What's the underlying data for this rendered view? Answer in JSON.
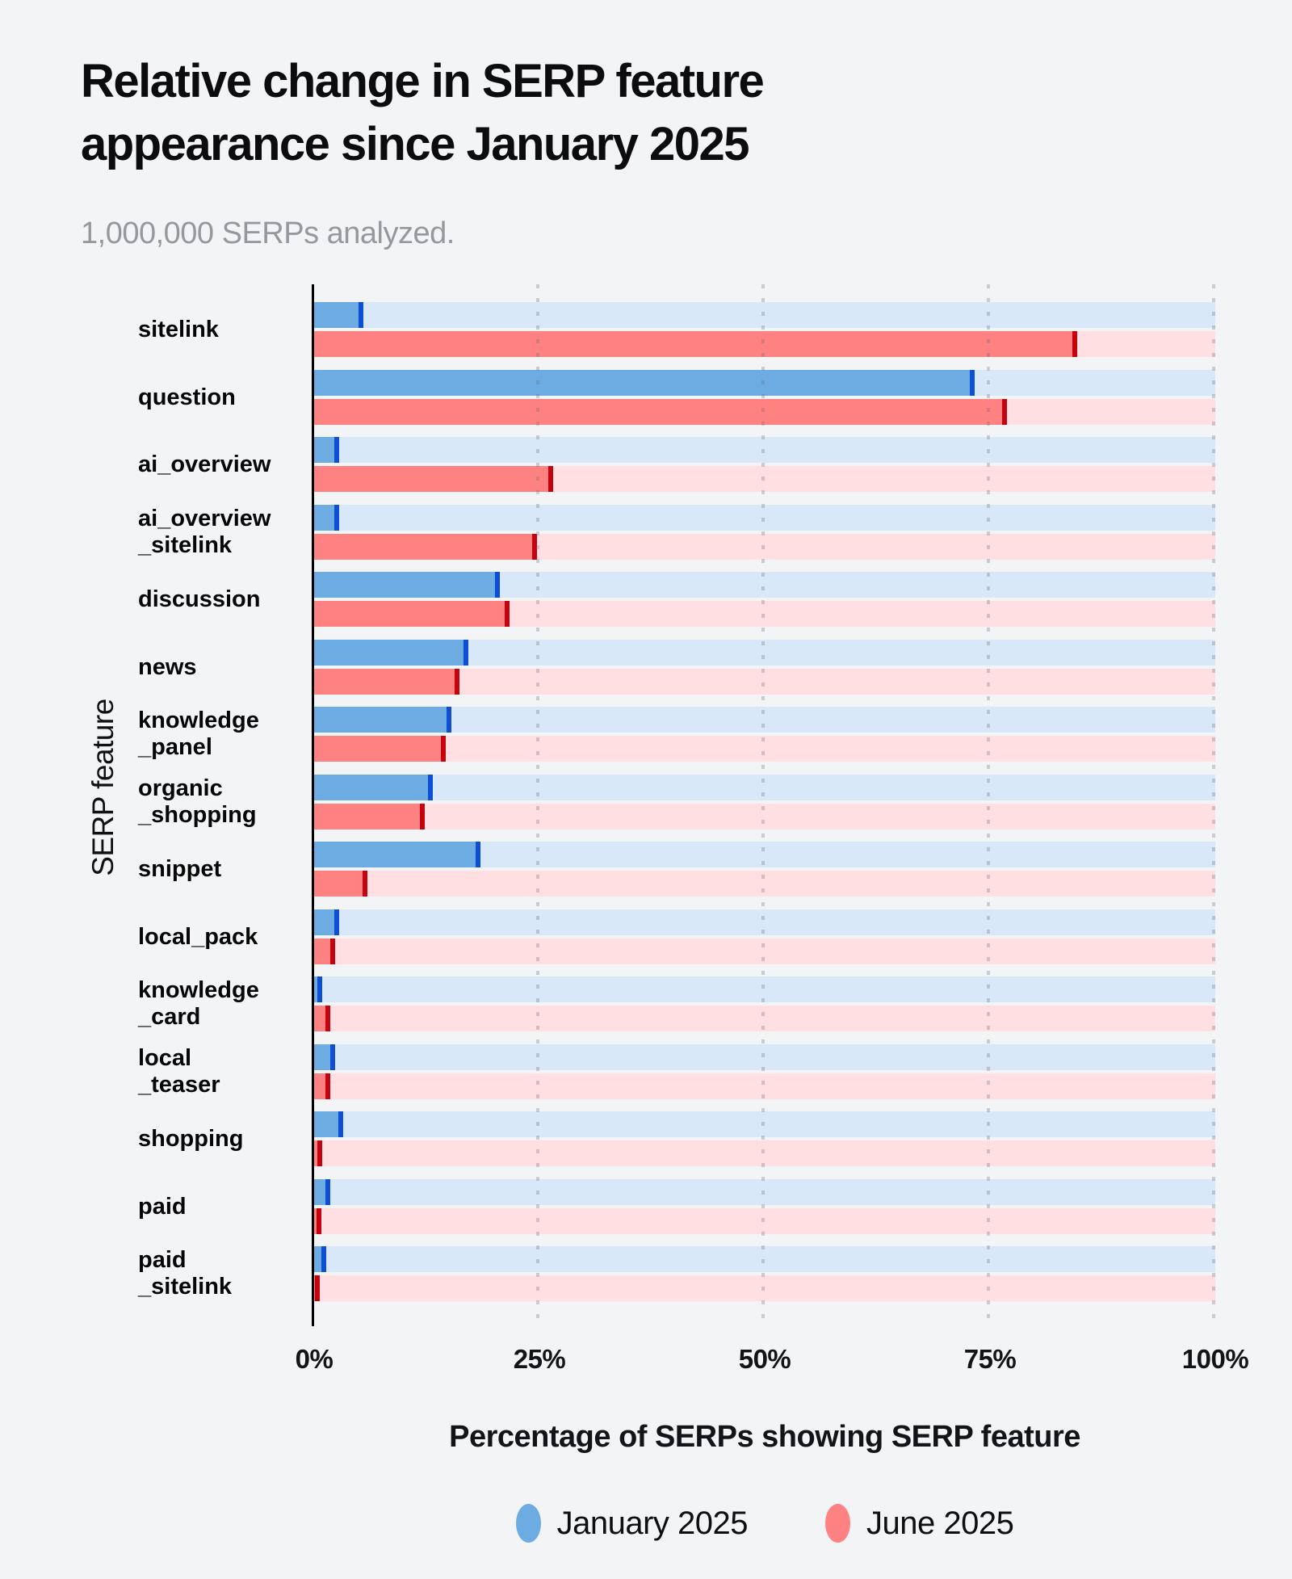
{
  "title": "Relative change in SERP feature appearance since January 2025",
  "subtitle": "1,000,000 SERPs analyzed.",
  "colors": {
    "background": "#f2f4f6",
    "january_fill": "#6dace3",
    "january_cap": "#0c4fd4",
    "january_track": "#d9e8f8",
    "june_fill": "#ff8282",
    "june_cap": "#c5020e",
    "june_track": "#ffdfe2",
    "axis": "#000000"
  },
  "x_axis": {
    "ticks": [
      "0%",
      "25%",
      "50%",
      "75%",
      "100%"
    ],
    "title": "Percentage of SERPs showing SERP feature"
  },
  "y_axis": {
    "title": "SERP feature"
  },
  "legend": {
    "items": [
      {
        "label": "January 2025",
        "color": "#6dace3"
      },
      {
        "label": "June 2025",
        "color": "#ff8282"
      }
    ]
  },
  "chart_data": {
    "type": "bar",
    "orientation": "horizontal",
    "title": "Relative change in SERP feature appearance since January 2025",
    "subtitle": "1,000,000 SERPs analyzed.",
    "xlabel": "Percentage of SERPs showing SERP feature",
    "ylabel": "SERP feature",
    "xlim": [
      0,
      100
    ],
    "x_tick_labels": [
      "0%",
      "25%",
      "50%",
      "75%",
      "100%"
    ],
    "grid": "dotted vertical gridlines at 25, 50, 75, 100",
    "legend_position": "bottom",
    "categories": [
      "sitelink",
      "question",
      "ai_overview",
      "ai_overview_sitelink",
      "discussion",
      "news",
      "knowledge_panel",
      "organic_shopping",
      "snippet",
      "local_pack",
      "knowledge_card",
      "local_teaser",
      "shopping",
      "paid",
      "paid_sitelink"
    ],
    "category_display_lines": [
      [
        "sitelink"
      ],
      [
        "question"
      ],
      [
        "ai_overview"
      ],
      [
        "ai_overview",
        "_sitelink"
      ],
      [
        "discussion"
      ],
      [
        "news"
      ],
      [
        "knowledge",
        "_panel"
      ],
      [
        "organic",
        "_shopping"
      ],
      [
        "snippet"
      ],
      [
        "local_pack"
      ],
      [
        "knowledge",
        "_card"
      ],
      [
        "local",
        "_teaser"
      ],
      [
        "shopping"
      ],
      [
        "paid"
      ],
      [
        "paid",
        "_sitelink"
      ]
    ],
    "series": [
      {
        "name": "January 2025",
        "values": [
          5.5,
          73.3,
          2.8,
          2.8,
          20.6,
          17.1,
          15.2,
          13.2,
          18.5,
          2.8,
          0.9,
          2.3,
          3.2,
          1.8,
          1.3
        ]
      },
      {
        "name": "June 2025",
        "values": [
          84.7,
          76.9,
          26.5,
          24.7,
          21.7,
          16.1,
          14.6,
          12.3,
          5.9,
          2.3,
          1.8,
          1.8,
          0.9,
          0.8,
          0.6
        ]
      }
    ]
  }
}
